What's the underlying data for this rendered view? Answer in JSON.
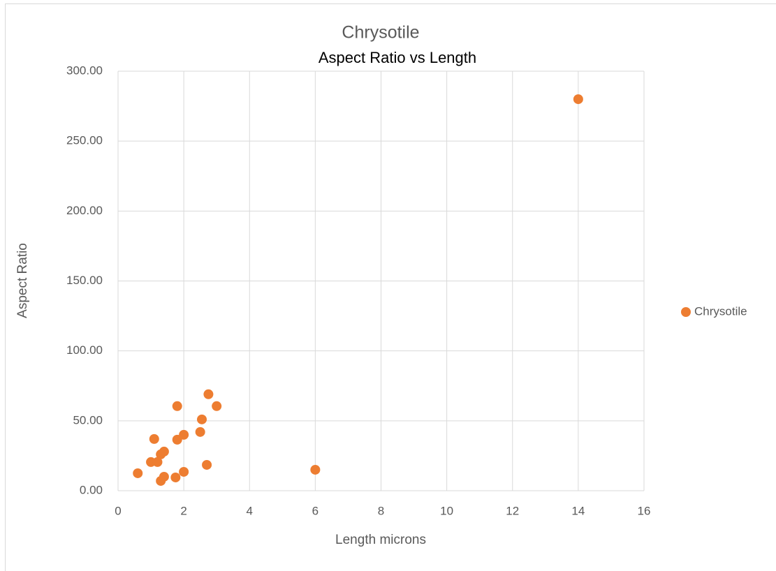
{
  "chart_data": {
    "type": "scatter",
    "title": "Chrysotile",
    "subtitle": "Aspect Ratio vs Length",
    "x_label": "Length microns",
    "y_label": "Aspect Ratio",
    "series": [
      {
        "name": "Chrysotile",
        "color": "#ed7d31",
        "x": [
          14,
          6,
          0.6,
          1,
          1.1,
          1.2,
          1.3,
          1.4,
          1.3,
          1.4,
          1.75,
          1.8,
          1.8,
          2,
          2,
          2.5,
          2.55,
          2.7,
          2.75,
          3
        ],
        "values": [
          280,
          15,
          12.5,
          20.5,
          37,
          20.5,
          26,
          28,
          7,
          10,
          9.5,
          60.5,
          36.5,
          40,
          13.5,
          42,
          51,
          18.5,
          69,
          60.5
        ]
      }
    ],
    "xlim": [
      0,
      16
    ],
    "xticks": [
      0,
      2,
      4,
      6,
      8,
      10,
      12,
      14,
      16
    ],
    "ylim": [
      0,
      300
    ],
    "yticks": [
      {
        "value": 0,
        "label": "0.00"
      },
      {
        "value": 50,
        "label": "50.00"
      },
      {
        "value": 100,
        "label": "100.00"
      },
      {
        "value": 150,
        "label": "150.00"
      },
      {
        "value": 200,
        "label": "200.00"
      },
      {
        "value": 250,
        "label": "250.00"
      },
      {
        "value": 300,
        "label": "300.00"
      }
    ],
    "grid": true,
    "legend": "right"
  }
}
